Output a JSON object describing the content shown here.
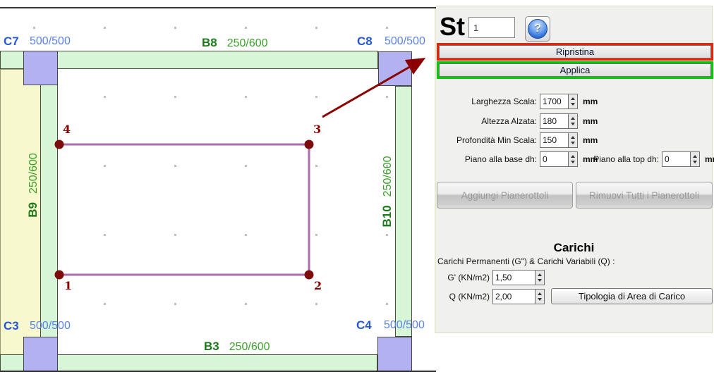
{
  "plan": {
    "columns": [
      {
        "name": "C7",
        "size": "500/500"
      },
      {
        "name": "C8",
        "size": "500/500"
      },
      {
        "name": "C3",
        "size": "500/500"
      },
      {
        "name": "C4",
        "size": "500/500"
      }
    ],
    "beams": [
      {
        "name": "B8",
        "size": "250/600"
      },
      {
        "name": "B9",
        "size": "250/600"
      },
      {
        "name": "B10",
        "size": "250/600"
      },
      {
        "name": "B3",
        "size": "250/600"
      }
    ],
    "points": {
      "p1": "1",
      "p2": "2",
      "p3": "3",
      "p4": "4"
    }
  },
  "panel": {
    "title": "St",
    "stair_number": "1",
    "help": "?",
    "ripristina": "Ripristina",
    "applica": "Applica",
    "fields": [
      {
        "label": "Larghezza Scala:",
        "value": "1700",
        "unit": "mm"
      },
      {
        "label": "Altezza Alzata:",
        "value": "180",
        "unit": "mm"
      },
      {
        "label": "Profondità Min Scala:",
        "value": "150",
        "unit": "mm"
      },
      {
        "label": "Piano alla base dh:",
        "value": "0",
        "unit": "mm"
      },
      {
        "label": "Piano alla top dh:",
        "value": "0",
        "unit": "mm"
      }
    ],
    "landings": {
      "add": "Aggiungi Pianerottoli",
      "remove": "Rimuovi Tutti i Pianerottoli"
    },
    "loads": {
      "heading": "Carichi",
      "subtitle": "Carichi Permanenti (G\") & Carichi Variabili (Q) :",
      "g_label": "G' (KN/m2)",
      "g_value": "1,50",
      "q_label": "Q (KN/m2)",
      "q_value": "2,00",
      "area_button": "Tipologia di Area di Carico"
    }
  },
  "colors": {
    "beam_fill": "#d7f6d7",
    "column_fill": "#b2b2f0",
    "slab_fill": "#f8f8cf",
    "polygon": "#ad6cad",
    "marker": "#7d0d0d",
    "arrow": "#8b0000",
    "accent_red": "#f22000",
    "accent_green": "#00cc00",
    "label_blue": "#2757d6",
    "label_green": "#1c7a1c"
  }
}
